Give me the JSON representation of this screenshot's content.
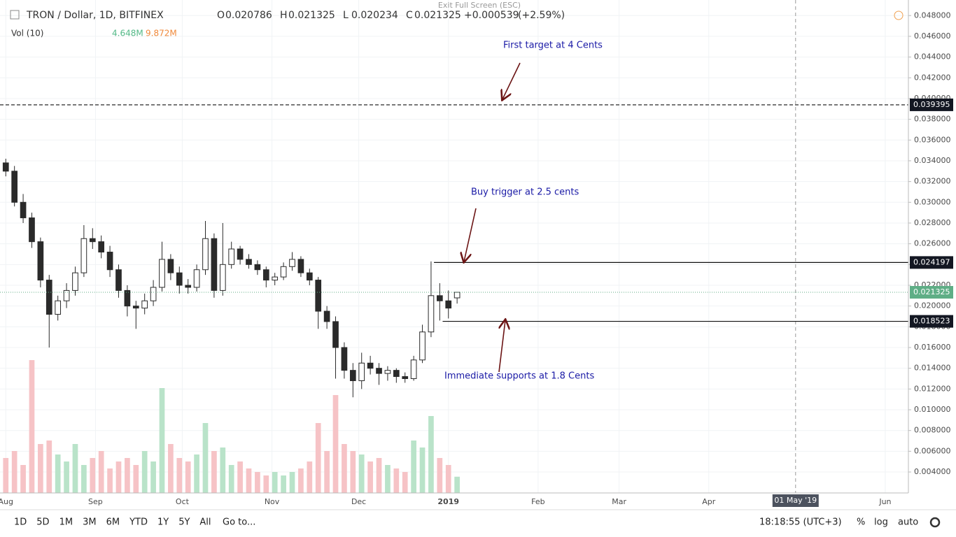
{
  "chart_data": {
    "type": "candlestick",
    "title": "TRON / Dollar, 1D, BITFINEX",
    "ohlc": [
      {
        "label": "O",
        "value": 0.020786
      },
      {
        "label": "H",
        "value": 0.021325
      },
      {
        "label": "L",
        "value": 0.020234
      },
      {
        "label": "C",
        "value": 0.021325
      }
    ],
    "change": {
      "value": 0.000539,
      "label": "+0.000539"
    },
    "change_pct": {
      "value": 2.59,
      "label": "(+2.59%)"
    },
    "volume_label": "Vol (10)",
    "volume_values": [
      {
        "value": 4.648,
        "label": "4.648M"
      },
      {
        "value": 9.872,
        "label": "9.872M"
      }
    ],
    "x": [
      0,
      3,
      6,
      9,
      12,
      15,
      18,
      21,
      24,
      27,
      30,
      33,
      36,
      39,
      42,
      45,
      48,
      51,
      54,
      57,
      60,
      63,
      66,
      69,
      72,
      75,
      78,
      81,
      84,
      87,
      90,
      93,
      96,
      99,
      102,
      105,
      108,
      111,
      114,
      117,
      120,
      123,
      126,
      129,
      132,
      135,
      138,
      141,
      144,
      147,
      150,
      153,
      156
    ],
    "open": [
      0.0338,
      0.033,
      0.03,
      0.0285,
      0.0262,
      0.0225,
      0.0192,
      0.0205,
      0.0215,
      0.0232,
      0.0265,
      0.0262,
      0.0252,
      0.0235,
      0.0215,
      0.02,
      0.0198,
      0.0205,
      0.0218,
      0.0245,
      0.0232,
      0.022,
      0.0218,
      0.0235,
      0.0265,
      0.0215,
      0.024,
      0.0255,
      0.0245,
      0.024,
      0.0235,
      0.0225,
      0.0228,
      0.0238,
      0.0245,
      0.0232,
      0.0225,
      0.0195,
      0.0185,
      0.016,
      0.0138,
      0.0128,
      0.0145,
      0.014,
      0.0135,
      0.0138,
      0.0132,
      0.013,
      0.0148,
      0.0175,
      0.021,
      0.0205,
      0.020786
    ],
    "high": [
      0.0342,
      0.0335,
      0.0308,
      0.029,
      0.0266,
      0.023,
      0.021,
      0.0222,
      0.0238,
      0.0278,
      0.0275,
      0.0268,
      0.0258,
      0.024,
      0.022,
      0.0205,
      0.0212,
      0.0225,
      0.0262,
      0.025,
      0.0238,
      0.0226,
      0.024,
      0.0282,
      0.027,
      0.028,
      0.0262,
      0.0258,
      0.025,
      0.0244,
      0.0238,
      0.0232,
      0.0242,
      0.0252,
      0.0248,
      0.0236,
      0.0228,
      0.02,
      0.019,
      0.0165,
      0.0145,
      0.0155,
      0.0152,
      0.0145,
      0.0142,
      0.014,
      0.0136,
      0.0152,
      0.0182,
      0.0243,
      0.0222,
      0.0215,
      0.021325
    ],
    "low": [
      0.0325,
      0.0296,
      0.028,
      0.0256,
      0.0218,
      0.016,
      0.0186,
      0.0198,
      0.021,
      0.0228,
      0.0255,
      0.0246,
      0.0228,
      0.0208,
      0.019,
      0.0178,
      0.0192,
      0.02,
      0.0214,
      0.0225,
      0.0212,
      0.0212,
      0.0214,
      0.023,
      0.0208,
      0.021,
      0.0236,
      0.024,
      0.0236,
      0.023,
      0.0218,
      0.022,
      0.0225,
      0.0234,
      0.0228,
      0.022,
      0.0178,
      0.0178,
      0.013,
      0.013,
      0.0112,
      0.012,
      0.0134,
      0.0124,
      0.0128,
      0.0126,
      0.0126,
      0.0128,
      0.0145,
      0.017,
      0.0186,
      0.0188,
      0.020234
    ],
    "close": [
      0.033,
      0.03,
      0.0285,
      0.0262,
      0.0225,
      0.0192,
      0.0205,
      0.0215,
      0.0232,
      0.0265,
      0.0262,
      0.0252,
      0.0235,
      0.0215,
      0.02,
      0.0198,
      0.0205,
      0.0218,
      0.0245,
      0.0232,
      0.022,
      0.0218,
      0.0235,
      0.0265,
      0.0215,
      0.024,
      0.0255,
      0.0245,
      0.024,
      0.0235,
      0.0225,
      0.0228,
      0.0238,
      0.0245,
      0.0232,
      0.0225,
      0.0195,
      0.0185,
      0.016,
      0.0138,
      0.0128,
      0.0145,
      0.014,
      0.0135,
      0.0138,
      0.0132,
      0.013,
      0.0148,
      0.0175,
      0.021,
      0.0205,
      0.0198,
      0.021325
    ],
    "volume": [
      10,
      12,
      8,
      38,
      14,
      15,
      11,
      9,
      14,
      8,
      10,
      12,
      7,
      9,
      10,
      8,
      12,
      9,
      30,
      14,
      10,
      9,
      11,
      20,
      12,
      13,
      8,
      9,
      7,
      6,
      5,
      6,
      5,
      6,
      7,
      9,
      20,
      12,
      28,
      14,
      12,
      11,
      9,
      10,
      8,
      7,
      6,
      15,
      13,
      22,
      10,
      8,
      4.648
    ],
    "volume_lim": [
      0,
      40
    ],
    "xlim": [
      -2,
      312
    ],
    "ylim": [
      0.00198,
      0.0495
    ],
    "xticks": [
      {
        "value": 0,
        "label": "Aug"
      },
      {
        "value": 31,
        "label": "Sep"
      },
      {
        "value": 61,
        "label": "Oct"
      },
      {
        "value": 92,
        "label": "Nov"
      },
      {
        "value": 122,
        "label": "Dec"
      },
      {
        "value": 153,
        "label": "2019"
      },
      {
        "value": 184,
        "label": "Feb"
      },
      {
        "value": 212,
        "label": "Mar"
      },
      {
        "value": 243,
        "label": "Apr"
      },
      {
        "value": 304,
        "label": "Jun"
      }
    ],
    "crosshair_x": {
      "value": 273,
      "label": "01 May '19"
    },
    "yticks": [
      {
        "value": 0.004,
        "label": "0.004000"
      },
      {
        "value": 0.006,
        "label": "0.006000"
      },
      {
        "value": 0.008,
        "label": "0.008000"
      },
      {
        "value": 0.01,
        "label": "0.010000"
      },
      {
        "value": 0.012,
        "label": "0.012000"
      },
      {
        "value": 0.014,
        "label": "0.014000"
      },
      {
        "value": 0.016,
        "label": "0.016000"
      },
      {
        "value": 0.018,
        "label": "0.018000"
      },
      {
        "value": 0.02,
        "label": "0.020000"
      },
      {
        "value": 0.022,
        "label": "0.022000"
      },
      {
        "value": 0.024,
        "label": "0.024000"
      },
      {
        "value": 0.026,
        "label": "0.026000"
      },
      {
        "value": 0.028,
        "label": "0.028000"
      },
      {
        "value": 0.03,
        "label": "0.030000"
      },
      {
        "value": 0.032,
        "label": "0.032000"
      },
      {
        "value": 0.034,
        "label": "0.034000"
      },
      {
        "value": 0.036,
        "label": "0.036000"
      },
      {
        "value": 0.038,
        "label": "0.038000"
      },
      {
        "value": 0.04,
        "label": "0.040000"
      },
      {
        "value": 0.042,
        "label": "0.042000"
      },
      {
        "value": 0.044,
        "label": "0.044000"
      },
      {
        "value": 0.046,
        "label": "0.046000"
      },
      {
        "value": 0.048,
        "label": "0.048000"
      }
    ],
    "levels": [
      {
        "value": 0.039395,
        "start_x": -2,
        "dashed": true
      },
      {
        "value": 0.024197,
        "start_x": 148,
        "dashed": false
      },
      {
        "value": 0.018523,
        "start_x": 151,
        "dashed": false
      }
    ],
    "last_price": 0.021325,
    "annotations": [
      "First target at 4 Cents",
      "Buy trigger at 2.5 cents",
      "Immediate supports at 1.8 Cents"
    ],
    "up_color": "#ffffff",
    "down_color": "#2a2a2a",
    "wick_color": "#2a2a2a",
    "volume_up_color": "#b9e3c9",
    "volume_down_color": "#f6c3c6",
    "last_color": "#5fae86"
  },
  "exit_fullscreen": "Exit Full Screen (ESC)",
  "toolbar": {
    "ranges": [
      "1D",
      "5D",
      "1M",
      "3M",
      "6M",
      "YTD",
      "1Y",
      "5Y",
      "All"
    ],
    "goto": "Go to...",
    "time": "18:18:55 (UTC+3)",
    "percent": "%",
    "log": "log",
    "auto": "auto"
  }
}
